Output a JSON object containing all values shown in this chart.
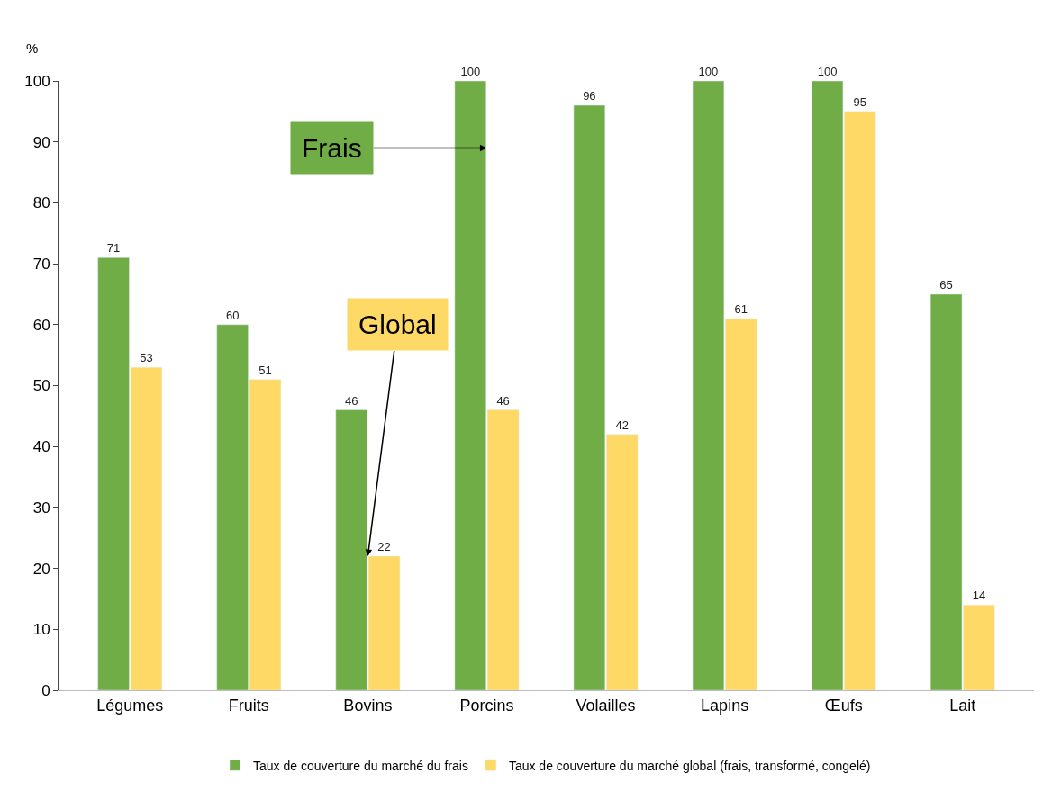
{
  "chart_data": {
    "type": "bar",
    "ylabel": "%",
    "categories": [
      "Légumes",
      "Fruits",
      "Bovins",
      "Porcins",
      "Volailles",
      "Lapins",
      "Œufs",
      "Lait"
    ],
    "series": [
      {
        "name": "Taux de couverture du marché du frais",
        "color": "#70ad47",
        "values": [
          71,
          60,
          46,
          100,
          96,
          100,
          100,
          65
        ]
      },
      {
        "name": "Taux de couverture du marché global (frais, transformé, congelé)",
        "color": "#ffd966",
        "values": [
          53,
          51,
          22,
          46,
          42,
          61,
          95,
          14
        ]
      }
    ],
    "ylim": [
      0,
      100
    ],
    "yticks": [
      0,
      10,
      20,
      30,
      40,
      50,
      60,
      70,
      80,
      90,
      100
    ],
    "legend": "bottom",
    "data_labels": true,
    "annotations": [
      {
        "text": "Frais",
        "x": "Porcins",
        "y": 89
      },
      {
        "text": "Global",
        "x": "Bovins",
        "y": 22
      }
    ]
  }
}
